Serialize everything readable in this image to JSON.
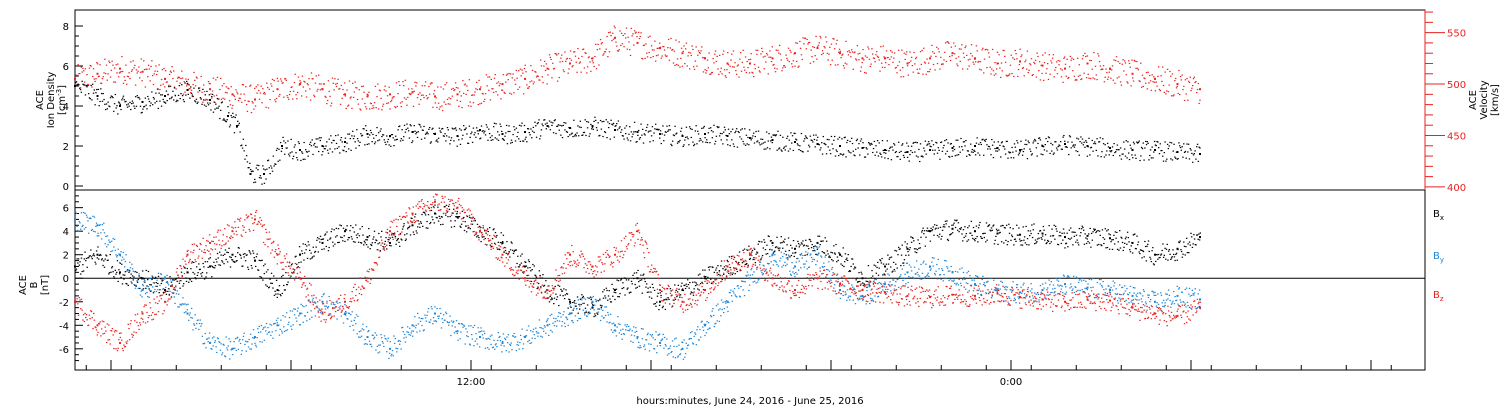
{
  "colors": {
    "black": "#000000",
    "red": "#e8231f",
    "blue": "#1f86d6"
  },
  "xaxis": {
    "label": "hours:minutes, June 24, 2016 - June 25, 2016",
    "range_hours": [
      0,
      30
    ],
    "ticks": [
      {
        "hour": 8.8,
        "label": "12:00"
      },
      {
        "hour": 20.8,
        "label": "0:00"
      }
    ]
  },
  "chart_data": [
    {
      "type": "scatter",
      "panel": "top",
      "grid": false,
      "left_axis": {
        "label_lines": [
          "ACE",
          "Ion Density"
        ],
        "unit_base": "[cm",
        "unit_sup": "-3",
        "unit_end": "]",
        "ylim": [
          -0.2,
          8.8
        ],
        "ticks": [
          0,
          2,
          4,
          6,
          8
        ]
      },
      "right_axis": {
        "label_lines": [
          "ACE",
          "Velocity",
          "[km/s]"
        ],
        "ylim": [
          397,
          572
        ],
        "ticks": [
          400,
          450,
          500,
          550
        ]
      },
      "series": [
        {
          "key": "density",
          "axis": "left",
          "color": "black",
          "x": [
            0,
            0.5,
            1,
            1.5,
            2,
            2.5,
            3,
            3.4,
            3.6,
            3.9,
            4.2,
            4.6,
            5,
            5.5,
            6,
            6.5,
            7,
            7.5,
            8,
            8.5,
            9,
            9.5,
            10,
            10.5,
            11,
            11.5,
            12,
            12.5,
            13,
            13.5,
            14,
            14.5,
            15,
            15.5,
            16,
            16.5,
            17,
            17.5,
            18,
            18.5,
            19,
            19.5,
            20,
            20.5,
            21,
            21.5,
            22,
            22.5,
            23,
            23.5,
            24,
            24.5,
            25
          ],
          "values": [
            5,
            4.5,
            4,
            4.2,
            4.5,
            4.8,
            4.3,
            3.5,
            3,
            0.6,
            0.6,
            2,
            1.8,
            2,
            2.2,
            2.6,
            2.5,
            2.7,
            2.6,
            2.5,
            2.8,
            2.6,
            2.7,
            3,
            2.9,
            3,
            2.8,
            2.7,
            2.6,
            2.5,
            2.6,
            2.5,
            2.4,
            2.3,
            2.2,
            2.1,
            2,
            1.9,
            1.8,
            1.7,
            1.8,
            1.9,
            2,
            1.9,
            1.8,
            2,
            2.1,
            2,
            1.9,
            1.8,
            1.8,
            1.7,
            1.6
          ]
        },
        {
          "key": "velocity",
          "axis": "right",
          "color": "red",
          "x": [
            0,
            0.5,
            1,
            1.5,
            2,
            2.5,
            3,
            3.5,
            4,
            4.5,
            5,
            5.5,
            6,
            6.5,
            7,
            7.5,
            8,
            8.5,
            9,
            9.5,
            10,
            10.5,
            11,
            11.5,
            12,
            12.5,
            13,
            13.5,
            14,
            14.5,
            15,
            15.5,
            16,
            16.5,
            17,
            17.5,
            18,
            18.5,
            19,
            19.5,
            20,
            20.5,
            21,
            21.5,
            22,
            22.5,
            23,
            23.5,
            24,
            24.5,
            25
          ],
          "values": [
            505,
            510,
            515,
            512,
            505,
            500,
            495,
            490,
            485,
            495,
            500,
            495,
            490,
            488,
            490,
            492,
            488,
            490,
            495,
            500,
            505,
            515,
            520,
            525,
            545,
            540,
            535,
            530,
            525,
            520,
            520,
            525,
            530,
            535,
            530,
            525,
            525,
            520,
            525,
            530,
            525,
            520,
            522,
            518,
            515,
            520,
            515,
            510,
            505,
            500,
            495
          ]
        }
      ]
    },
    {
      "type": "scatter",
      "panel": "bottom",
      "grid": false,
      "left_axis": {
        "label_lines": [
          "ACE",
          "B",
          "[nT]"
        ],
        "ylim": [
          -7.8,
          7.5
        ],
        "ticks": [
          -6,
          -4,
          -2,
          0,
          2,
          4,
          6
        ]
      },
      "zero_line": true,
      "legend": [
        {
          "base": "B",
          "sub": "x",
          "color": "black"
        },
        {
          "base": "B",
          "sub": "y",
          "color": "blue"
        },
        {
          "base": "B",
          "sub": "z",
          "color": "red"
        }
      ],
      "series": [
        {
          "key": "bx",
          "name": "Bx",
          "color": "black",
          "x": [
            0,
            0.5,
            1,
            1.5,
            2,
            2.5,
            3,
            3.5,
            4,
            4.5,
            5,
            5.5,
            6,
            6.5,
            7,
            7.5,
            8,
            8.5,
            9,
            9.5,
            10,
            10.5,
            11,
            11.5,
            12,
            12.5,
            13,
            13.5,
            14,
            14.5,
            15,
            15.5,
            16,
            16.5,
            17,
            17.5,
            18,
            18.5,
            19,
            19.5,
            20,
            20.5,
            21,
            21.5,
            22,
            22.5,
            23,
            23.5,
            24,
            24.5,
            25
          ],
          "values": [
            1,
            2,
            0.5,
            0,
            -1,
            0.5,
            1,
            2,
            1.5,
            -1,
            2,
            3,
            4,
            3.5,
            3,
            4.5,
            5.5,
            5.2,
            4,
            3,
            1,
            -1,
            -2,
            -2.5,
            -1,
            0,
            -2,
            -1,
            0,
            1,
            2,
            3,
            2.5,
            3,
            2,
            0,
            1,
            2.5,
            4,
            4.2,
            4,
            3.8,
            3.7,
            3.8,
            3.5,
            3.6,
            3.4,
            3,
            2,
            2.5,
            3.5
          ]
        },
        {
          "key": "by",
          "name": "By",
          "color": "blue",
          "x": [
            0,
            0.5,
            1,
            1.5,
            2,
            2.5,
            3,
            3.5,
            4,
            4.5,
            5,
            5.5,
            6,
            6.5,
            7,
            7.5,
            8,
            8.5,
            9,
            9.5,
            10,
            10.5,
            11,
            11.5,
            12,
            12.5,
            13,
            13.5,
            14,
            14.5,
            15,
            15.5,
            16,
            16.5,
            17,
            17.5,
            18,
            18.5,
            19,
            19.5,
            20,
            20.5,
            21,
            21.5,
            22,
            22.5,
            23,
            23.5,
            24,
            24.5,
            25
          ],
          "values": [
            5,
            4.5,
            2,
            -1,
            0,
            -3,
            -5.5,
            -6,
            -5,
            -4,
            -3,
            -2,
            -3,
            -5,
            -6,
            -4,
            -3,
            -4.5,
            -5,
            -5.5,
            -5,
            -4,
            -3,
            -2,
            -4,
            -5,
            -5.5,
            -6,
            -4,
            -2,
            0,
            2,
            1,
            2,
            -1,
            -1.5,
            -0.5,
            0.5,
            1,
            0.5,
            -0.5,
            -1,
            -1.2,
            -1,
            -0.5,
            -0.8,
            -1,
            -1.5,
            -2,
            -1.5,
            -1.8
          ]
        },
        {
          "key": "bz",
          "name": "Bz",
          "color": "red",
          "x": [
            0,
            0.5,
            1,
            1.5,
            2,
            2.5,
            3,
            3.5,
            4,
            4.5,
            5,
            5.5,
            6,
            6.5,
            7,
            7.5,
            8,
            8.5,
            9,
            9.5,
            10,
            10.5,
            11,
            11.5,
            12,
            12.5,
            13,
            13.5,
            14,
            14.5,
            15,
            15.5,
            16,
            16.5,
            17,
            17.5,
            18,
            18.5,
            19,
            19.5,
            20,
            20.5,
            21,
            21.5,
            22,
            22.5,
            23,
            23.5,
            24,
            24.5,
            25
          ],
          "values": [
            -2,
            -4,
            -5.5,
            -3,
            -2,
            2,
            3,
            4,
            5,
            2,
            0,
            -3,
            -2,
            0,
            4,
            5.5,
            6.5,
            6,
            4,
            2,
            0,
            -1,
            2,
            1,
            2,
            4,
            -1,
            -2,
            -1,
            1,
            2,
            0,
            -1,
            0,
            -0.5,
            -1,
            -1.2,
            -1.5,
            -1.6,
            -1.4,
            -1.5,
            -1.3,
            -1.6,
            -1.8,
            -2,
            -1.8,
            -1.9,
            -2.5,
            -3,
            -3.2,
            -2.5
          ]
        }
      ]
    }
  ]
}
